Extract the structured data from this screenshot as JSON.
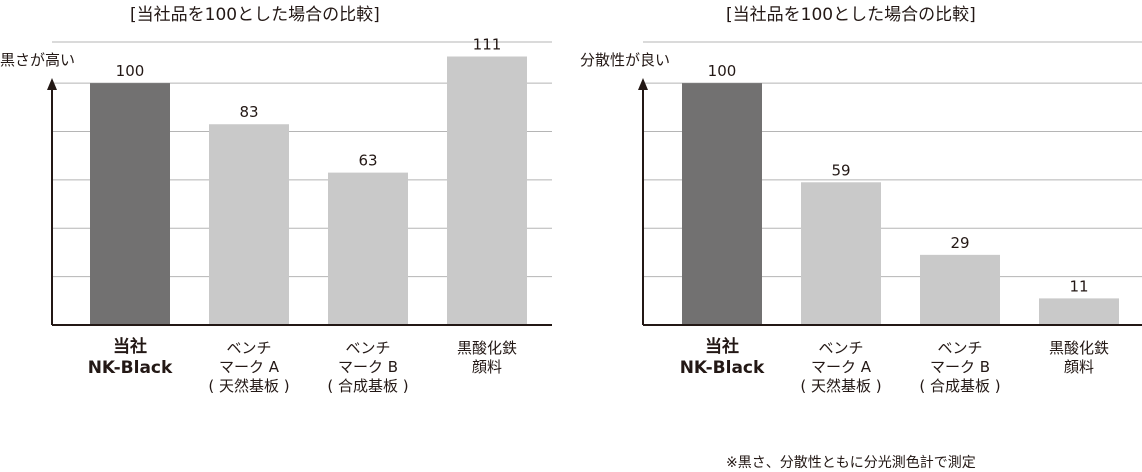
{
  "colors": {
    "highlight_bar": "#727171",
    "bar": "#c9c9c9",
    "grid": "#b5b5b5",
    "axis": "#231815"
  },
  "chart_data": [
    {
      "type": "bar",
      "title": "[当社品を100とした場合の比較]",
      "ylabel": "黒さが高い",
      "categories": [
        [
          "当社",
          "NK-Black"
        ],
        [
          "ベンチ",
          "マーク A",
          "( 天然基板 )"
        ],
        [
          "ベンチ",
          "マーク B",
          "( 合成基板 )"
        ],
        [
          "黒酸化鉄",
          "顔料"
        ]
      ],
      "values": [
        100,
        83,
        63,
        111
      ],
      "value_labels": [
        "100",
        "83",
        "63",
        "111"
      ],
      "ylim": [
        0,
        117
      ],
      "grid": true,
      "highlight_index": 0
    },
    {
      "type": "bar",
      "title": "[当社品を100とした場合の比較]",
      "ylabel": "分散性が良い",
      "categories": [
        [
          "当社",
          "NK-Black"
        ],
        [
          "ベンチ",
          "マーク A",
          "( 天然基板 )"
        ],
        [
          "ベンチ",
          "マーク B",
          "( 合成基板 )"
        ],
        [
          "黒酸化鉄",
          "顔料"
        ]
      ],
      "values": [
        100,
        59,
        29,
        11
      ],
      "value_labels": [
        "100",
        "59",
        "29",
        "11"
      ],
      "ylim": [
        0,
        117
      ],
      "grid": true,
      "highlight_index": 0
    }
  ],
  "footnote": "※黒さ、分散性ともに分光測色計で測定"
}
